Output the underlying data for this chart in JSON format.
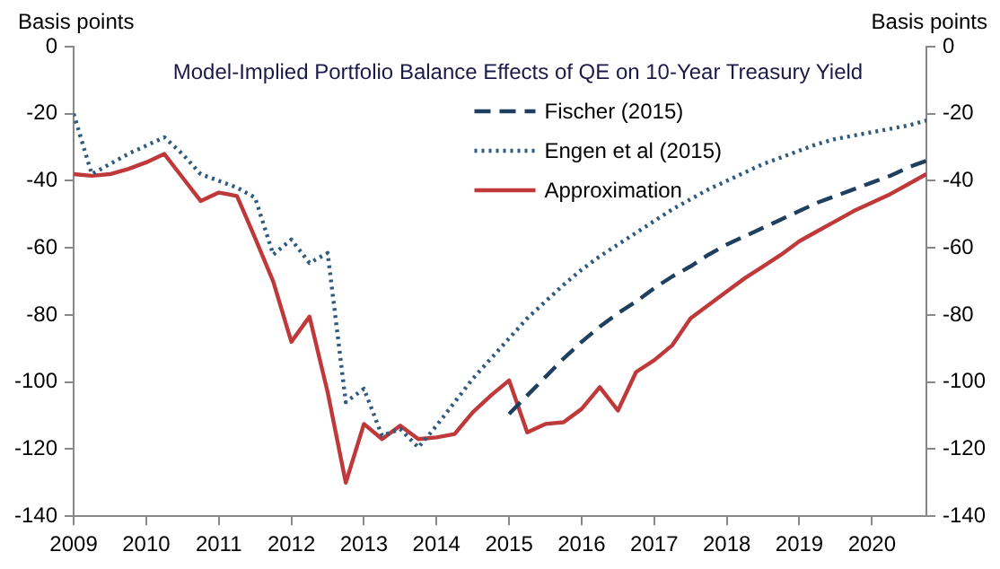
{
  "chart_data": {
    "type": "line",
    "title": "Model-Implied Portfolio Balance Effects of QE on 10-Year Treasury Yield",
    "ylabel": "Basis points",
    "y2label": "Basis points",
    "x": [
      2009,
      2009.25,
      2009.5,
      2009.75,
      2010,
      2010.25,
      2010.5,
      2010.75,
      2011,
      2011.25,
      2011.5,
      2011.75,
      2012,
      2012.25,
      2012.5,
      2012.75,
      2013,
      2013.25,
      2013.5,
      2013.75,
      2014,
      2014.25,
      2014.5,
      2014.75,
      2015,
      2015.25,
      2015.5,
      2015.75,
      2016,
      2016.25,
      2016.5,
      2016.75,
      2017,
      2017.25,
      2017.5,
      2017.75,
      2018,
      2018.25,
      2018.5,
      2018.75,
      2019,
      2019.25,
      2019.5,
      2019.75,
      2020,
      2020.25,
      2020.5,
      2020.75
    ],
    "series": [
      {
        "name": "Fischer (2015)",
        "color": "#1f3f5f",
        "line_style": "dashed",
        "x": [
          2015,
          2015.25,
          2015.5,
          2015.75,
          2016,
          2016.25,
          2016.5,
          2016.75,
          2017,
          2017.25,
          2017.5,
          2017.75,
          2018,
          2018.25,
          2018.5,
          2018.75,
          2019,
          2019.25,
          2019.5,
          2019.75,
          2020,
          2020.25,
          2020.5,
          2020.75
        ],
        "values": [
          -109.5,
          -104,
          -98.5,
          -93,
          -88,
          -83.5,
          -79.5,
          -76,
          -72,
          -68.5,
          -65.5,
          -62,
          -59,
          -56.5,
          -54,
          -51.5,
          -49,
          -46.5,
          -44.5,
          -42.5,
          -40.5,
          -38.5,
          -36,
          -34
        ]
      },
      {
        "name": "Engen et al (2015)",
        "color": "#2e5a7e",
        "line_style": "dotted",
        "values": [
          -20,
          -38,
          -35,
          -32,
          -29.5,
          -27,
          -32,
          -38,
          -40,
          -42,
          -45,
          -62,
          -57.5,
          -64.5,
          -61.5,
          -106,
          -102,
          -116,
          -114,
          -119.5,
          -113,
          -106,
          -99,
          -93,
          -87,
          -81,
          -76,
          -71,
          -66.5,
          -62.5,
          -59,
          -55.5,
          -52,
          -48.5,
          -45.5,
          -42.5,
          -40,
          -37.5,
          -35,
          -33,
          -31,
          -29,
          -27.5,
          -26.5,
          -25.5,
          -24.5,
          -23.5,
          -22
        ]
      },
      {
        "name": "Approximation",
        "color": "#c0393a",
        "line_style": "solid",
        "values": [
          -38,
          -38.5,
          -38,
          -36.5,
          -34.5,
          -32,
          -39,
          -46,
          -43.5,
          -44.5,
          -57,
          -70,
          -88,
          -80.5,
          -103,
          -130,
          -112.5,
          -117,
          -113,
          -117,
          -116.5,
          -115.5,
          -109,
          -104,
          -99.5,
          -115,
          -112.5,
          -112,
          -108,
          -101.5,
          -108.5,
          -97,
          -93.5,
          -89,
          -81,
          -77,
          -73,
          -69,
          -65.5,
          -62,
          -58,
          -55,
          -52,
          -49,
          -46.5,
          -44,
          -41,
          -38
        ]
      }
    ],
    "xlim": [
      2009,
      2020.75
    ],
    "xticks": [
      2009,
      2010,
      2011,
      2012,
      2013,
      2014,
      2015,
      2016,
      2017,
      2018,
      2019,
      2020
    ],
    "ylim": [
      -140,
      0
    ],
    "yticks": [
      -140,
      -120,
      -100,
      -80,
      -60,
      -40,
      -20,
      0
    ],
    "y2lim": [
      -140,
      0
    ],
    "y2ticks": [
      -140,
      -120,
      -100,
      -80,
      -60,
      -40,
      -20,
      0
    ],
    "grid": false,
    "legend": "top",
    "marker": "none"
  }
}
